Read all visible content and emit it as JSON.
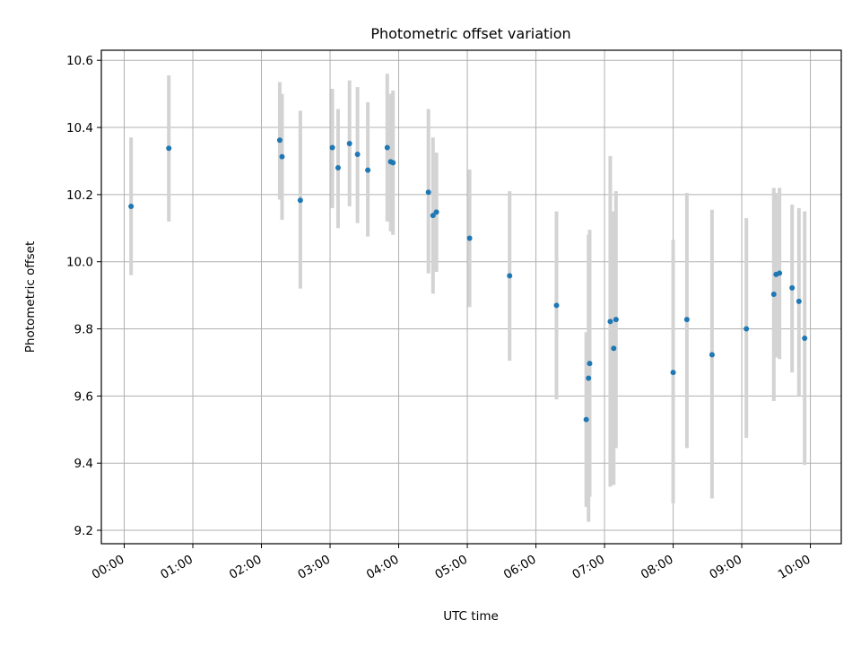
{
  "chart_data": {
    "type": "scatter",
    "title": "Photometric offset variation",
    "xlabel": "UTC time",
    "ylabel": "Photometric offset",
    "x_unit": "UTC time (HH:MM)",
    "xlim": [
      "23:40",
      "10:27"
    ],
    "ylim": [
      9.16,
      10.63
    ],
    "x_ticks": [
      "00:00",
      "01:00",
      "02:00",
      "03:00",
      "04:00",
      "05:00",
      "06:00",
      "07:00",
      "08:00",
      "09:00",
      "10:00"
    ],
    "y_ticks": [
      "9.2",
      "9.4",
      "9.6",
      "9.8",
      "10.0",
      "10.2",
      "10.4",
      "10.6"
    ],
    "y_tick_values": [
      9.2,
      9.4,
      9.6,
      9.8,
      10.0,
      10.2,
      10.4,
      10.6
    ],
    "grid": true,
    "point_color": "#1f77b4",
    "errorbar_color": "#d3d3d3",
    "points": [
      {
        "x": "00:06",
        "y": 10.165,
        "lo": 9.96,
        "hi": 10.37
      },
      {
        "x": "00:39",
        "y": 10.338,
        "lo": 10.12,
        "hi": 10.555
      },
      {
        "x": "02:16",
        "y": 10.362,
        "lo": 10.185,
        "hi": 10.535
      },
      {
        "x": "02:18",
        "y": 10.313,
        "lo": 10.125,
        "hi": 10.5
      },
      {
        "x": "02:34",
        "y": 10.183,
        "lo": 9.92,
        "hi": 10.45
      },
      {
        "x": "03:02",
        "y": 10.34,
        "lo": 10.16,
        "hi": 10.515
      },
      {
        "x": "03:07",
        "y": 10.28,
        "lo": 10.1,
        "hi": 10.455
      },
      {
        "x": "03:17",
        "y": 10.352,
        "lo": 10.165,
        "hi": 10.54
      },
      {
        "x": "03:24",
        "y": 10.32,
        "lo": 10.115,
        "hi": 10.52
      },
      {
        "x": "03:33",
        "y": 10.273,
        "lo": 10.075,
        "hi": 10.475
      },
      {
        "x": "03:50",
        "y": 10.34,
        "lo": 10.12,
        "hi": 10.56
      },
      {
        "x": "03:53",
        "y": 10.298,
        "lo": 10.09,
        "hi": 10.5
      },
      {
        "x": "03:55",
        "y": 10.295,
        "lo": 10.08,
        "hi": 10.51
      },
      {
        "x": "04:26",
        "y": 10.207,
        "lo": 9.965,
        "hi": 10.455
      },
      {
        "x": "04:30",
        "y": 10.138,
        "lo": 9.905,
        "hi": 10.37
      },
      {
        "x": "04:33",
        "y": 10.148,
        "lo": 9.97,
        "hi": 10.325
      },
      {
        "x": "05:02",
        "y": 10.07,
        "lo": 9.865,
        "hi": 10.275
      },
      {
        "x": "05:37",
        "y": 9.958,
        "lo": 9.705,
        "hi": 10.21
      },
      {
        "x": "06:18",
        "y": 9.87,
        "lo": 9.59,
        "hi": 10.15
      },
      {
        "x": "06:44",
        "y": 9.53,
        "lo": 9.27,
        "hi": 9.79
      },
      {
        "x": "06:46",
        "y": 9.653,
        "lo": 9.225,
        "hi": 10.08
      },
      {
        "x": "06:47",
        "y": 9.697,
        "lo": 9.3,
        "hi": 10.095
      },
      {
        "x": "07:05",
        "y": 9.822,
        "lo": 9.33,
        "hi": 10.315
      },
      {
        "x": "07:08",
        "y": 9.742,
        "lo": 9.335,
        "hi": 10.15
      },
      {
        "x": "07:10",
        "y": 9.828,
        "lo": 9.445,
        "hi": 10.21
      },
      {
        "x": "08:00",
        "y": 9.67,
        "lo": 9.28,
        "hi": 10.065
      },
      {
        "x": "08:12",
        "y": 9.828,
        "lo": 9.445,
        "hi": 10.205
      },
      {
        "x": "08:34",
        "y": 9.723,
        "lo": 9.295,
        "hi": 10.155
      },
      {
        "x": "09:04",
        "y": 9.8,
        "lo": 9.475,
        "hi": 10.13
      },
      {
        "x": "09:28",
        "y": 9.903,
        "lo": 9.585,
        "hi": 10.22
      },
      {
        "x": "09:30",
        "y": 9.962,
        "lo": 9.715,
        "hi": 10.205
      },
      {
        "x": "09:33",
        "y": 9.966,
        "lo": 9.71,
        "hi": 10.22
      },
      {
        "x": "09:44",
        "y": 9.922,
        "lo": 9.67,
        "hi": 10.17
      },
      {
        "x": "09:50",
        "y": 9.882,
        "lo": 9.6,
        "hi": 10.16
      },
      {
        "x": "09:55",
        "y": 9.772,
        "lo": 9.395,
        "hi": 10.15
      }
    ]
  }
}
